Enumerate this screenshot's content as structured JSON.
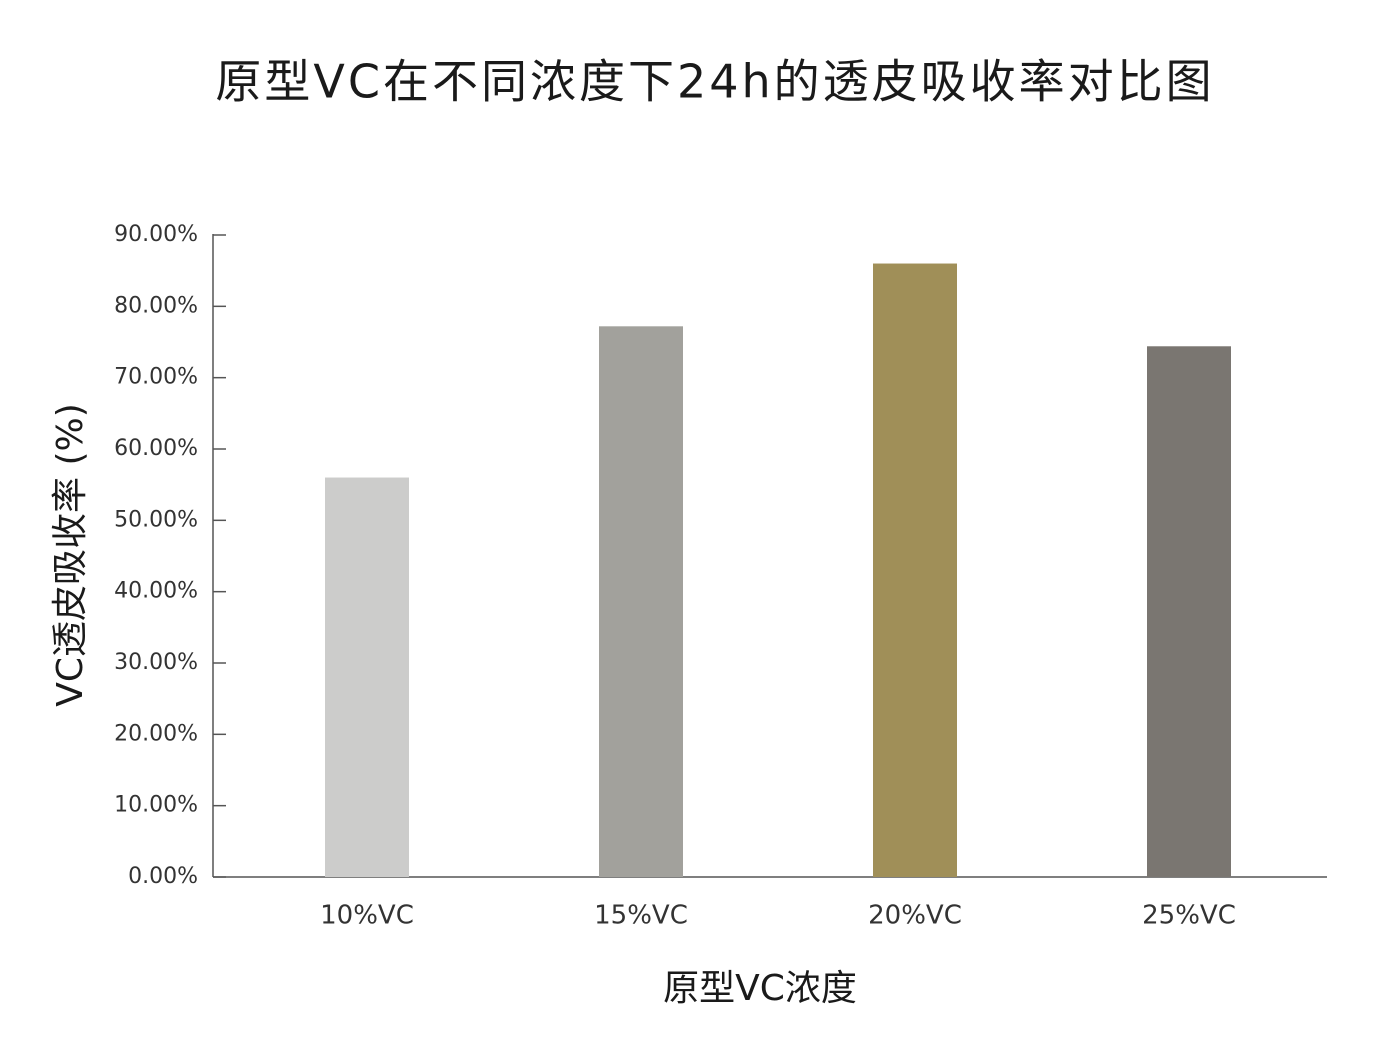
{
  "chart_data": {
    "type": "bar",
    "title": "原型VC在不同浓度下24h的透皮吸收率对比图",
    "x_label": "原型VC浓度",
    "y_label": "VC透皮吸收率 (%)",
    "categories": [
      "10%VC",
      "15%VC",
      "20%VC",
      "25%VC"
    ],
    "values": [
      56,
      77.2,
      86,
      74.4
    ],
    "colors": [
      "#cccccb",
      "#a2a19c",
      "#a08f58",
      "#7a7671"
    ],
    "ylim": [
      0,
      90
    ],
    "yticks": [
      {
        "value": 0,
        "label": "0.00%"
      },
      {
        "value": 10,
        "label": "10.00%"
      },
      {
        "value": 20,
        "label": "20.00%"
      },
      {
        "value": 30,
        "label": "30.00%"
      },
      {
        "value": 40,
        "label": "40.00%"
      },
      {
        "value": 50,
        "label": "50.00%"
      },
      {
        "value": 60,
        "label": "60.00%"
      },
      {
        "value": 70,
        "label": "70.00%"
      },
      {
        "value": 80,
        "label": "80.00%"
      },
      {
        "value": 90,
        "label": "90.00%"
      }
    ],
    "grid": false
  }
}
